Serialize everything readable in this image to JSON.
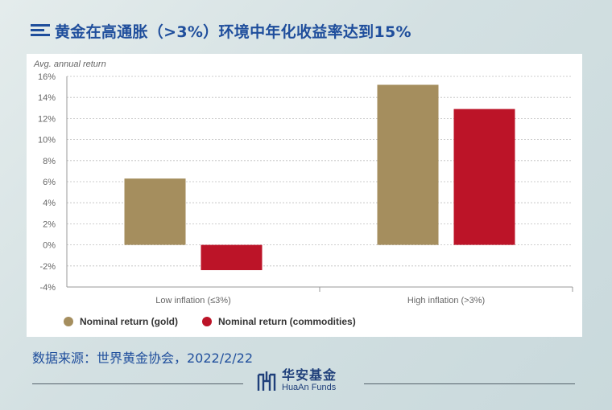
{
  "title": "黄金在高通胀（>3%）环境中年化收益率达到15%",
  "source": "数据来源：世界黄金协会，2022/2/22",
  "brand": {
    "cn": "华安基金",
    "en": "HuaAn Funds"
  },
  "colors": {
    "gold": "#a58e5e",
    "commodities": "#bc1428",
    "title": "#1f4e9c"
  },
  "chart_data": {
    "type": "bar",
    "ylabel": "Avg. annual return",
    "categories": [
      "Low inflation (≤3%)",
      "High inflation (>3%)"
    ],
    "series": [
      {
        "name": "Nominal return (gold)",
        "values": [
          6.3,
          15.2
        ],
        "color": "#a58e5e"
      },
      {
        "name": "Nominal return (commodities)",
        "values": [
          -2.4,
          12.9
        ],
        "color": "#bc1428"
      }
    ],
    "ylim": [
      -4,
      16
    ],
    "yticks": [
      "-4%",
      "-2%",
      "0%",
      "2%",
      "4%",
      "6%",
      "8%",
      "10%",
      "12%",
      "14%",
      "16%"
    ],
    "grid": true,
    "legend": "bottom-left"
  }
}
